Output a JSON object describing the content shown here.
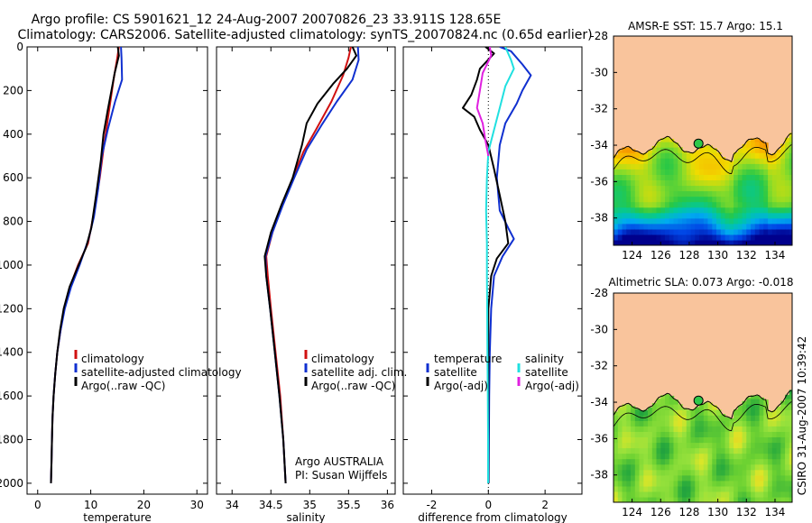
{
  "title_line1": "Argo profile: CS 5901621_12 24-Aug-2007 20070826_23 33.911S 128.65E",
  "title_line2": "Climatology: CARS2006. Satellite-adjusted climatology: synTS_20070824.nc (0.65d earlier)",
  "side_credit": "CSIRO 31-Aug-2007 10:39:42",
  "colors": {
    "red": "#d01010",
    "blue": "#1030d0",
    "black": "#000000",
    "cyan": "#20e0e0",
    "magenta": "#e020e0",
    "land": "#f9c49c"
  },
  "chart_data": [
    {
      "type": "line",
      "xlabel": "temperature",
      "ylabel": "",
      "xlim": [
        -2,
        32
      ],
      "ylim": [
        2050,
        0
      ],
      "xticks": [
        0,
        10,
        20,
        30
      ],
      "yticks": [
        0,
        200,
        400,
        600,
        800,
        1000,
        1200,
        1400,
        1600,
        1800,
        2000
      ],
      "legend": [
        "climatology",
        "satellite-adjusted climatology",
        "Argo(..raw -QC)"
      ],
      "legend_placement": "lower-center",
      "series": [
        {
          "name": "climatology",
          "color": "#d01010",
          "points": [
            [
              15.3,
              0
            ],
            [
              15.0,
              50
            ],
            [
              14.3,
              150
            ],
            [
              13.4,
              300
            ],
            [
              12.5,
              450
            ],
            [
              11.7,
              600
            ],
            [
              10.7,
              750
            ],
            [
              9.5,
              900
            ],
            [
              7.6,
              1000
            ],
            [
              6.1,
              1100
            ],
            [
              5.0,
              1200
            ],
            [
              4.3,
              1300
            ],
            [
              3.7,
              1400
            ],
            [
              3.3,
              1500
            ],
            [
              3.0,
              1600
            ],
            [
              2.8,
              1700
            ],
            [
              2.7,
              1800
            ],
            [
              2.6,
              1900
            ],
            [
              2.5,
              2000
            ]
          ]
        },
        {
          "name": "satellite-adjusted climatology",
          "color": "#1030d0",
          "points": [
            [
              15.7,
              0
            ],
            [
              15.8,
              50
            ],
            [
              15.9,
              150
            ],
            [
              14.6,
              250
            ],
            [
              13.2,
              380
            ],
            [
              12.1,
              500
            ],
            [
              11.4,
              650
            ],
            [
              10.6,
              780
            ],
            [
              9.6,
              880
            ],
            [
              7.9,
              1000
            ],
            [
              6.3,
              1100
            ],
            [
              5.1,
              1200
            ],
            [
              4.3,
              1300
            ],
            [
              3.7,
              1400
            ],
            [
              3.3,
              1500
            ],
            [
              3.0,
              1600
            ],
            [
              2.8,
              1700
            ],
            [
              2.7,
              1800
            ],
            [
              2.6,
              1900
            ],
            [
              2.5,
              2000
            ]
          ]
        },
        {
          "name": "Argo(..raw -QC)",
          "color": "#000000",
          "points": [
            [
              15.1,
              0
            ],
            [
              15.3,
              40
            ],
            [
              14.5,
              120
            ],
            [
              13.9,
              200
            ],
            [
              13.2,
              290
            ],
            [
              12.4,
              400
            ],
            [
              11.9,
              520
            ],
            [
              11.0,
              680
            ],
            [
              10.1,
              830
            ],
            [
              9.1,
              920
            ],
            [
              7.7,
              1000
            ],
            [
              6.0,
              1100
            ],
            [
              4.9,
              1200
            ],
            [
              4.2,
              1300
            ],
            [
              3.7,
              1400
            ],
            [
              3.3,
              1500
            ],
            [
              3.0,
              1600
            ],
            [
              2.8,
              1700
            ],
            [
              2.7,
              1800
            ],
            [
              2.6,
              1900
            ],
            [
              2.5,
              2000
            ]
          ]
        }
      ]
    },
    {
      "type": "line",
      "xlabel": "salinity",
      "ylabel": "",
      "xlim": [
        33.8,
        36.1
      ],
      "ylim": [
        2050,
        0
      ],
      "xticks": [
        34,
        34.5,
        35,
        35.5,
        36
      ],
      "legend": [
        "climatology",
        "satellite adj. clim.",
        "Argo(..raw -QC)"
      ],
      "legend_placement": "lower-right",
      "annotation": [
        "Argo AUSTRALIA",
        "PI: Susan Wijffels"
      ],
      "series": [
        {
          "name": "climatology",
          "color": "#d01010",
          "points": [
            [
              35.53,
              0
            ],
            [
              35.5,
              50
            ],
            [
              35.43,
              130
            ],
            [
              35.28,
              250
            ],
            [
              35.08,
              380
            ],
            [
              34.92,
              480
            ],
            [
              34.78,
              600
            ],
            [
              34.65,
              720
            ],
            [
              34.52,
              850
            ],
            [
              34.44,
              960
            ],
            [
              34.46,
              1050
            ],
            [
              34.5,
              1200
            ],
            [
              34.56,
              1400
            ],
            [
              34.62,
              1600
            ],
            [
              34.66,
              1800
            ],
            [
              34.69,
              2000
            ]
          ]
        },
        {
          "name": "satellite adj. clim.",
          "color": "#1030d0",
          "points": [
            [
              35.62,
              0
            ],
            [
              35.63,
              60
            ],
            [
              35.55,
              150
            ],
            [
              35.35,
              250
            ],
            [
              35.15,
              360
            ],
            [
              34.96,
              470
            ],
            [
              34.8,
              600
            ],
            [
              34.66,
              720
            ],
            [
              34.52,
              850
            ],
            [
              34.43,
              960
            ],
            [
              34.44,
              1050
            ],
            [
              34.49,
              1200
            ],
            [
              34.55,
              1400
            ],
            [
              34.61,
              1600
            ],
            [
              34.66,
              1800
            ],
            [
              34.69,
              2000
            ]
          ]
        },
        {
          "name": "Argo(..raw -QC)",
          "color": "#000000",
          "points": [
            [
              35.55,
              0
            ],
            [
              35.6,
              40
            ],
            [
              35.48,
              100
            ],
            [
              35.3,
              170
            ],
            [
              35.1,
              260
            ],
            [
              34.96,
              350
            ],
            [
              34.9,
              450
            ],
            [
              34.78,
              600
            ],
            [
              34.64,
              720
            ],
            [
              34.5,
              850
            ],
            [
              34.42,
              960
            ],
            [
              34.44,
              1050
            ],
            [
              34.49,
              1200
            ],
            [
              34.55,
              1400
            ],
            [
              34.61,
              1600
            ],
            [
              34.66,
              1800
            ],
            [
              34.69,
              2000
            ]
          ]
        }
      ]
    },
    {
      "type": "line",
      "xlabel": "difference from climatology",
      "ylabel": "",
      "xlim": [
        -3,
        3.3
      ],
      "ylim": [
        2050,
        0
      ],
      "xticks": [
        -2,
        0,
        2
      ],
      "legend": [
        "temperature",
        "satellite",
        "Argo(-adj)",
        "salinity",
        "satellite",
        "Argo(-adj)"
      ],
      "legend_placement": "lower-center",
      "series": [
        {
          "name": "temperature satellite",
          "color": "#1030d0",
          "points": [
            [
              0.4,
              0
            ],
            [
              0.8,
              20
            ],
            [
              1.2,
              80
            ],
            [
              1.5,
              130
            ],
            [
              1.2,
              200
            ],
            [
              1.0,
              260
            ],
            [
              0.6,
              350
            ],
            [
              0.4,
              450
            ],
            [
              0.3,
              600
            ],
            [
              0.4,
              750
            ],
            [
              0.7,
              830
            ],
            [
              0.9,
              880
            ],
            [
              0.5,
              960
            ],
            [
              0.2,
              1050
            ],
            [
              0.1,
              1200
            ],
            [
              0.05,
              1400
            ],
            [
              0.03,
              1600
            ],
            [
              0.02,
              1800
            ],
            [
              0.01,
              2000
            ]
          ]
        },
        {
          "name": "temperature Argo(-adj)",
          "color": "#000000",
          "points": [
            [
              -0.1,
              0
            ],
            [
              0.2,
              30
            ],
            [
              -0.3,
              100
            ],
            [
              -0.4,
              150
            ],
            [
              -0.6,
              220
            ],
            [
              -0.9,
              280
            ],
            [
              -0.5,
              320
            ],
            [
              -0.3,
              380
            ],
            [
              0.0,
              450
            ],
            [
              0.2,
              560
            ],
            [
              0.4,
              680
            ],
            [
              0.6,
              800
            ],
            [
              0.7,
              900
            ],
            [
              0.3,
              970
            ],
            [
              0.1,
              1050
            ],
            [
              0.0,
              1200
            ],
            [
              0.0,
              1400
            ],
            [
              0.0,
              1600
            ],
            [
              0.0,
              1800
            ],
            [
              0.0,
              2000
            ]
          ]
        },
        {
          "name": "salinity satellite",
          "color": "#20e0e0",
          "points": [
            [
              0.6,
              0
            ],
            [
              0.8,
              60
            ],
            [
              0.9,
              100
            ],
            [
              0.6,
              180
            ],
            [
              0.4,
              280
            ],
            [
              0.2,
              380
            ],
            [
              0.0,
              480
            ],
            [
              -0.05,
              600
            ],
            [
              -0.08,
              750
            ],
            [
              -0.05,
              900
            ],
            [
              -0.05,
              1050
            ],
            [
              -0.04,
              1200
            ],
            [
              -0.03,
              1400
            ],
            [
              -0.02,
              1600
            ],
            [
              -0.01,
              1800
            ],
            [
              -0.01,
              2000
            ]
          ]
        },
        {
          "name": "salinity Argo(-adj)",
          "color": "#e020e0",
          "points": [
            [
              0.05,
              0
            ],
            [
              0.1,
              40
            ],
            [
              -0.2,
              120
            ],
            [
              -0.3,
              200
            ],
            [
              -0.4,
              280
            ],
            [
              -0.2,
              350
            ],
            [
              -0.1,
              430
            ],
            [
              0.0,
              500
            ]
          ]
        }
      ]
    },
    {
      "type": "heatmap",
      "title": "AMSR-E SST: 15.7  Argo: 15.1",
      "xlim": [
        122.7,
        135.2
      ],
      "ylim": [
        -39.5,
        -28
      ],
      "xticks": [
        124,
        126,
        128,
        130,
        132,
        134
      ],
      "yticks": [
        -28,
        -30,
        -32,
        -34,
        -36,
        -38
      ],
      "argo_position": [
        128.65,
        -33.91
      ]
    },
    {
      "type": "heatmap",
      "title": "Altimetric SLA: 0.073  Argo: -0.018",
      "xlim": [
        122.7,
        135.2
      ],
      "ylim": [
        -39.5,
        -28
      ],
      "xticks": [
        124,
        126,
        128,
        130,
        132,
        134
      ],
      "yticks": [
        -28,
        -30,
        -32,
        -34,
        -36,
        -38
      ],
      "argo_position": [
        128.65,
        -33.91
      ]
    }
  ]
}
